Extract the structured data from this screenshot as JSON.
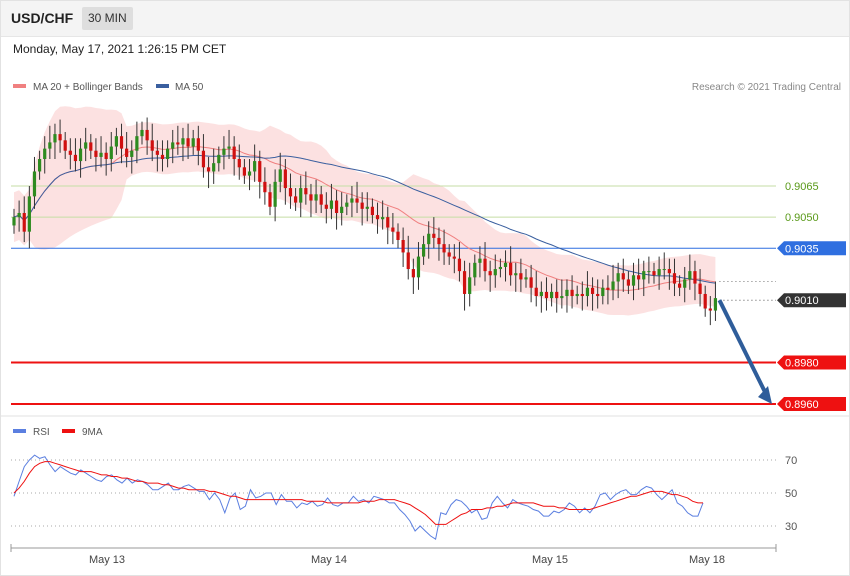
{
  "header": {
    "symbol": "USD/CHF",
    "timeframe": "30 MIN",
    "timestamp": "Monday, May 17, 2021 1:26:15 PM CET"
  },
  "chart_data": [
    {
      "type": "candlestick",
      "legend": [
        {
          "name": "MA 20 + Bollinger Bands",
          "color": "#f08080"
        },
        {
          "name": "MA 50",
          "color": "#3a5f9f"
        }
      ],
      "credit": "Research © 2021 Trading Central",
      "ylim": [
        0.8958,
        0.9115
      ],
      "x_ticks": [
        "May 13",
        "May 14",
        "May 15",
        "May 18"
      ],
      "levels": [
        {
          "value": 0.9065,
          "label": "0.9065",
          "color": "#5a9a1a",
          "style": "resistance"
        },
        {
          "value": 0.905,
          "label": "0.9050",
          "color": "#5a9a1a",
          "style": "resistance"
        },
        {
          "value": 0.9035,
          "label": "0.9035",
          "color": "#2f6fe0",
          "style": "pivot"
        },
        {
          "value": 0.901,
          "label": "0.9010",
          "color": "#333333",
          "style": "last"
        },
        {
          "value": 0.898,
          "label": "0.8980",
          "color": "#ee1111",
          "style": "support"
        },
        {
          "value": 0.896,
          "label": "0.8960",
          "color": "#ee1111",
          "style": "support"
        }
      ],
      "forecast_arrow": {
        "from": 0.901,
        "to": 0.896,
        "color": "#2f5d9a"
      },
      "closes": [
        0.905,
        0.9052,
        0.9043,
        0.906,
        0.9072,
        0.9078,
        0.9083,
        0.9086,
        0.909,
        0.9087,
        0.9082,
        0.908,
        0.9077,
        0.9083,
        0.9086,
        0.9082,
        0.9079,
        0.9081,
        0.9078,
        0.9084,
        0.9089,
        0.9083,
        0.9079,
        0.9082,
        0.9089,
        0.9092,
        0.9087,
        0.9082,
        0.908,
        0.9078,
        0.9083,
        0.9086,
        0.9085,
        0.9088,
        0.9084,
        0.9088,
        0.9082,
        0.9074,
        0.9072,
        0.9076,
        0.908,
        0.9083,
        0.9084,
        0.9078,
        0.9074,
        0.907,
        0.9072,
        0.9077,
        0.9067,
        0.9062,
        0.9055,
        0.9067,
        0.9073,
        0.9064,
        0.906,
        0.9057,
        0.9064,
        0.9061,
        0.9058,
        0.9061,
        0.9056,
        0.9054,
        0.9058,
        0.9052,
        0.9055,
        0.9057,
        0.9059,
        0.9057,
        0.9054,
        0.9055,
        0.9051,
        0.9049,
        0.905,
        0.9045,
        0.9043,
        0.9039,
        0.9033,
        0.9025,
        0.9021,
        0.9031,
        0.9037,
        0.9042,
        0.904,
        0.9037,
        0.9033,
        0.9031,
        0.903,
        0.9024,
        0.9013,
        0.9021,
        0.9028,
        0.903,
        0.9024,
        0.9022,
        0.9025,
        0.9026,
        0.9028,
        0.9022,
        0.9023,
        0.902,
        0.9021,
        0.9016,
        0.9012,
        0.9014,
        0.9011,
        0.9014,
        0.9011,
        0.9012,
        0.9015,
        0.9012,
        0.9013,
        0.9012,
        0.9016,
        0.9013,
        0.9012,
        0.9016,
        0.9015,
        0.9019,
        0.9023,
        0.902,
        0.9017,
        0.9022,
        0.902,
        0.9024,
        0.9024,
        0.9022,
        0.9025,
        0.9025,
        0.9023,
        0.9018,
        0.9016,
        0.902,
        0.9024,
        0.9018,
        0.9013,
        0.9006,
        0.9005,
        0.9011
      ]
    },
    {
      "type": "line",
      "legend": [
        {
          "name": "RSI",
          "color": "#5b7fe0"
        },
        {
          "name": "9MA",
          "color": "#ee1111"
        }
      ],
      "ylim": [
        18,
        82
      ],
      "levels": [
        70,
        50,
        30
      ],
      "series": [
        {
          "name": "RSI",
          "values": [
            48,
            57,
            66,
            70,
            73,
            71,
            72,
            67,
            63,
            66,
            64,
            62,
            61,
            64,
            62,
            60,
            58,
            57,
            60,
            61,
            58,
            56,
            59,
            56,
            58,
            57,
            55,
            52,
            52,
            54,
            56,
            52,
            52,
            54,
            55,
            53,
            51,
            51,
            46,
            50,
            46,
            38,
            47,
            50,
            40,
            42,
            52,
            47,
            48,
            50,
            50,
            43,
            49,
            45,
            45,
            41,
            44,
            43,
            45,
            42,
            43,
            47,
            43,
            42,
            44,
            44,
            48,
            45,
            46,
            44,
            48,
            47,
            46,
            44,
            44,
            40,
            37,
            33,
            27,
            30,
            27,
            24,
            22,
            38,
            37,
            43,
            46,
            45,
            42,
            38,
            40,
            34,
            35,
            44,
            48,
            44,
            41,
            46,
            44,
            43,
            42,
            40,
            39,
            36,
            36,
            39,
            38,
            40,
            44,
            42,
            38,
            41,
            38,
            42,
            49,
            50,
            46,
            49,
            51,
            52,
            49,
            49,
            52,
            54,
            53,
            49,
            46,
            49,
            52,
            44,
            42,
            38,
            36,
            36,
            44
          ]
        },
        {
          "name": "9MA",
          "values": [
            50,
            53,
            57,
            62,
            66,
            68,
            69,
            69,
            68,
            67,
            66,
            65,
            64,
            63,
            63,
            63,
            62,
            61,
            61,
            60,
            60,
            59,
            59,
            58,
            57,
            57,
            56,
            56,
            56,
            55,
            55,
            54,
            53,
            53,
            52,
            52,
            52,
            52,
            51,
            51,
            50,
            49,
            48,
            48,
            47,
            46,
            46,
            46,
            46,
            46,
            46,
            46,
            46,
            46,
            46,
            46,
            46,
            45,
            45,
            45,
            45,
            44,
            44,
            44,
            44,
            44,
            44,
            44,
            45,
            45,
            45,
            46,
            46,
            46,
            46,
            45,
            44,
            43,
            41,
            39,
            37,
            34,
            31,
            31,
            31,
            33,
            35,
            37,
            38,
            40,
            40,
            40,
            41,
            41,
            42,
            42,
            43,
            44,
            44,
            44,
            44,
            44,
            43,
            42,
            42,
            42,
            41,
            41,
            40,
            40,
            40,
            40,
            40,
            41,
            42,
            43,
            44,
            45,
            46,
            47,
            48,
            48,
            49,
            50,
            51,
            51,
            51,
            50,
            49,
            49,
            48,
            47,
            45,
            44,
            44
          ]
        }
      ]
    }
  ]
}
